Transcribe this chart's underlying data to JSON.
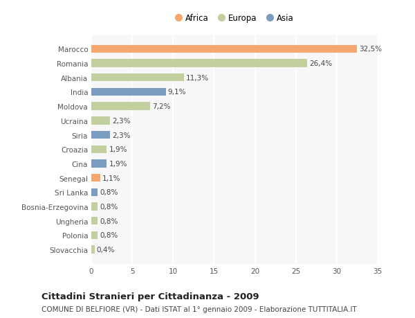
{
  "categories": [
    "Slovacchia",
    "Polonia",
    "Ungheria",
    "Bosnia-Erzegovina",
    "Sri Lanka",
    "Senegal",
    "Cina",
    "Croazia",
    "Siria",
    "Ucraina",
    "Moldova",
    "India",
    "Albania",
    "Romania",
    "Marocco"
  ],
  "values": [
    0.4,
    0.8,
    0.8,
    0.8,
    0.8,
    1.1,
    1.9,
    1.9,
    2.3,
    2.3,
    7.2,
    9.1,
    11.3,
    26.4,
    32.5
  ],
  "labels": [
    "0,4%",
    "0,8%",
    "0,8%",
    "0,8%",
    "0,8%",
    "1,1%",
    "1,9%",
    "1,9%",
    "2,3%",
    "2,3%",
    "7,2%",
    "9,1%",
    "11,3%",
    "26,4%",
    "32,5%"
  ],
  "continents": [
    "Europa",
    "Europa",
    "Europa",
    "Europa",
    "Asia",
    "Africa",
    "Asia",
    "Europa",
    "Asia",
    "Europa",
    "Europa",
    "Asia",
    "Europa",
    "Europa",
    "Africa"
  ],
  "colors": {
    "Africa": "#F5A86E",
    "Europa": "#C2CF9F",
    "Asia": "#7B9DC0"
  },
  "xlim": [
    0,
    35
  ],
  "xticks": [
    0,
    5,
    10,
    15,
    20,
    25,
    30,
    35
  ],
  "title": "Cittadini Stranieri per Cittadinanza - 2009",
  "subtitle": "COMUNE DI BELFIORE (VR) - Dati ISTAT al 1° gennaio 2009 - Elaborazione TUTTITALIA.IT",
  "background_color": "#ffffff",
  "plot_bg_color": "#f7f7f7",
  "grid_color": "#ffffff",
  "bar_height": 0.55,
  "label_fontsize": 7.5,
  "title_fontsize": 9.5,
  "subtitle_fontsize": 7.5,
  "tick_fontsize": 7.5,
  "legend_fontsize": 8.5
}
